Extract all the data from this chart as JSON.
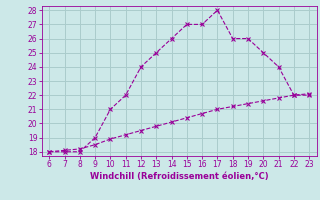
{
  "x_upper": [
    6,
    7,
    8,
    9,
    10,
    11,
    12,
    13,
    14,
    15,
    16,
    17,
    18,
    19,
    20,
    21,
    22,
    23
  ],
  "y_upper": [
    18,
    18,
    18,
    19,
    21,
    22,
    24,
    25,
    26,
    27,
    27,
    28,
    26,
    26,
    25,
    24,
    22,
    22
  ],
  "x_lower": [
    6,
    7,
    8,
    9,
    10,
    11,
    12,
    13,
    14,
    15,
    16,
    17,
    18,
    19,
    20,
    21,
    22,
    23
  ],
  "y_lower": [
    18,
    18.1,
    18.2,
    18.5,
    18.9,
    19.2,
    19.5,
    19.8,
    20.1,
    20.4,
    20.7,
    21.0,
    21.2,
    21.4,
    21.6,
    21.8,
    22.0,
    22.1
  ],
  "line_color": "#990099",
  "bg_color": "#cce8e8",
  "grid_color": "#aacccc",
  "xlabel": "Windchill (Refroidissement éolien,°C)",
  "xlabel_color": "#990099",
  "tick_color": "#990099",
  "xlim": [
    5.5,
    23.5
  ],
  "ylim": [
    17.7,
    28.3
  ],
  "xticks": [
    6,
    7,
    8,
    9,
    10,
    11,
    12,
    13,
    14,
    15,
    16,
    17,
    18,
    19,
    20,
    21,
    22,
    23
  ],
  "yticks": [
    18,
    19,
    20,
    21,
    22,
    23,
    24,
    25,
    26,
    27,
    28
  ],
  "marker": "x",
  "marker_size": 3,
  "line_width": 0.8
}
